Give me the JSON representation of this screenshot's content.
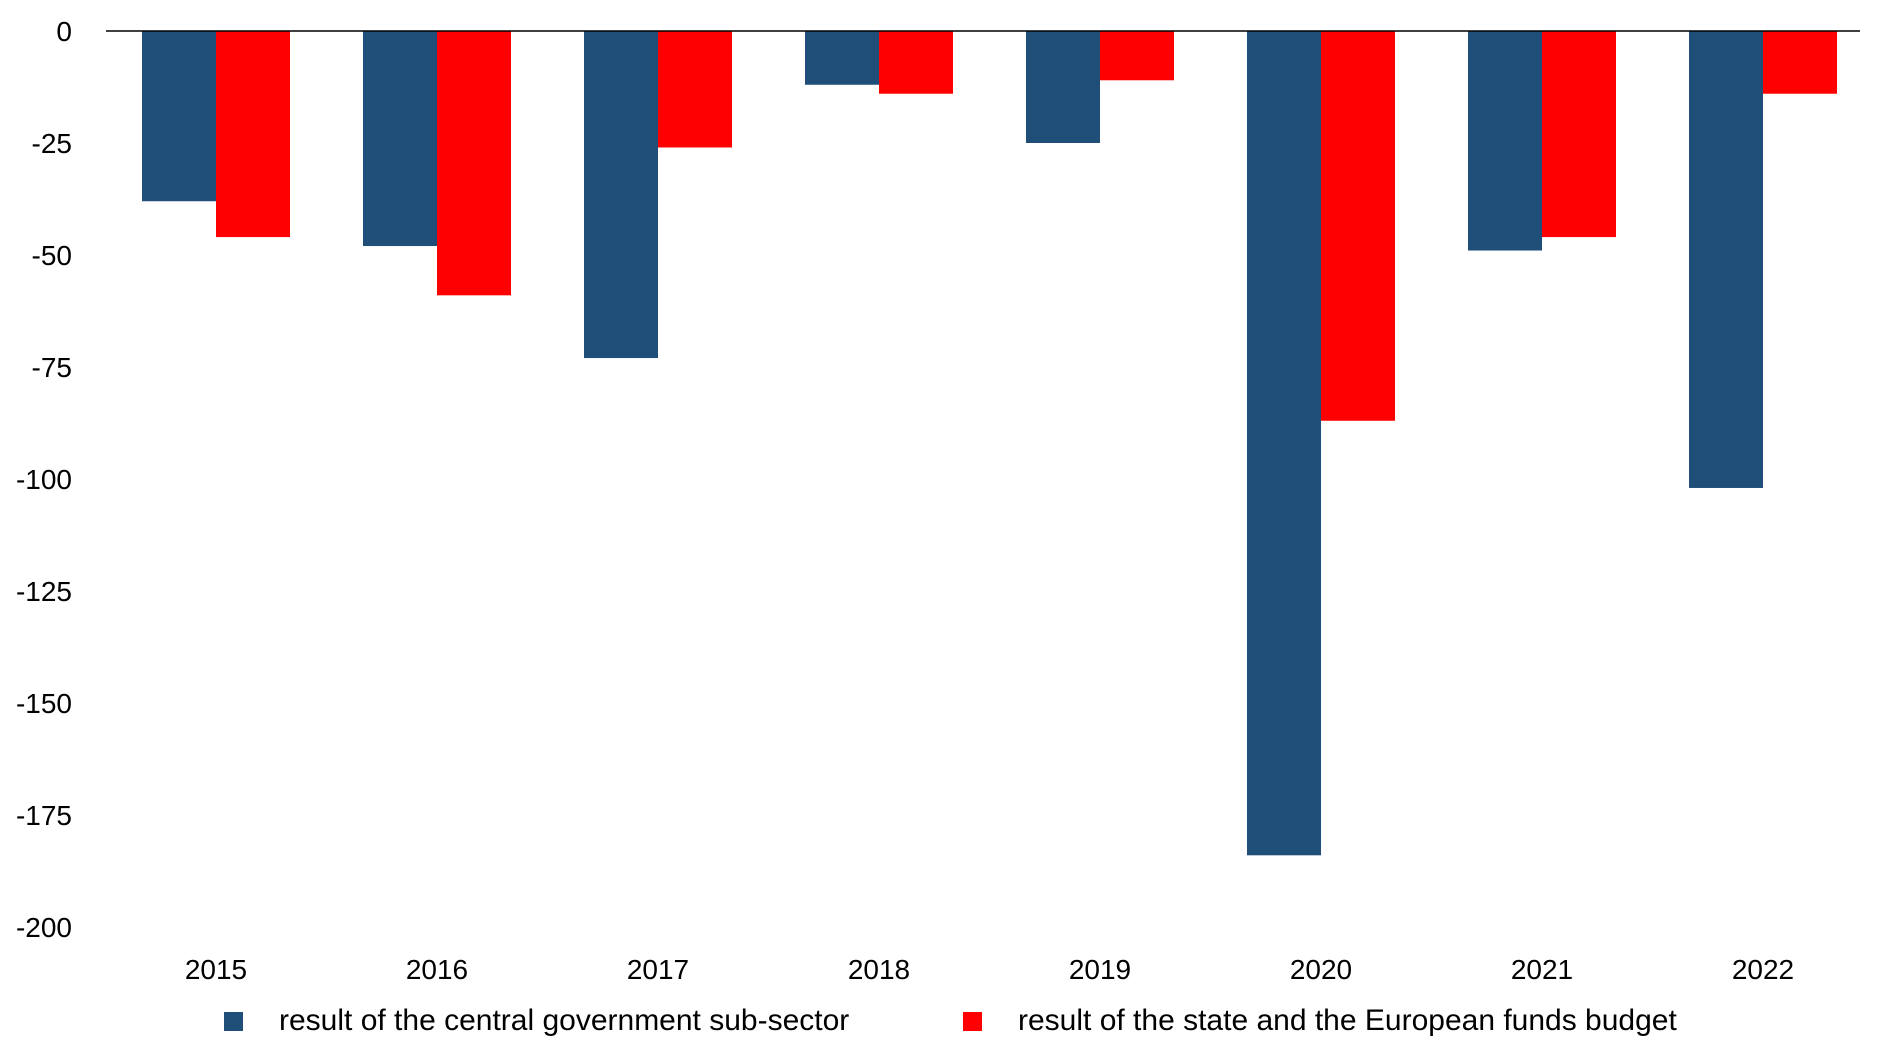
{
  "chart_data": {
    "type": "bar",
    "categories": [
      "2015",
      "2016",
      "2017",
      "2018",
      "2019",
      "2020",
      "2021",
      "2022"
    ],
    "series": [
      {
        "name": "result of the central government sub-sector",
        "color": "#1f4e79",
        "values": [
          -38,
          -48,
          -73,
          -12,
          -25,
          -184,
          -49,
          -102
        ]
      },
      {
        "name": "result of the state and the European funds budget",
        "color": "#ff0000",
        "values": [
          -46,
          -59,
          -26,
          -14,
          -11,
          -87,
          -46,
          -14
        ]
      }
    ],
    "yticks": [
      "0",
      "-25",
      "-50",
      "-75",
      "-100",
      "-125",
      "-150",
      "-175",
      "-200"
    ],
    "ylim": [
      -200,
      0
    ],
    "grid": false,
    "legend_position": "bottom"
  }
}
